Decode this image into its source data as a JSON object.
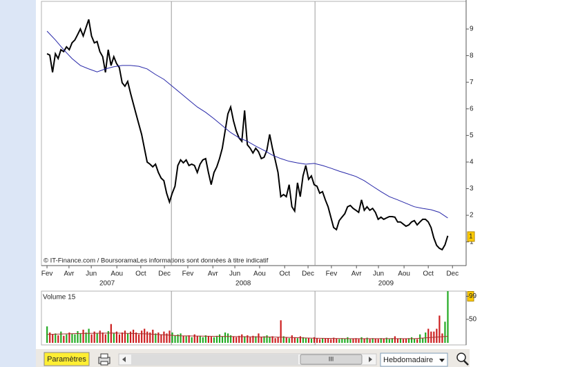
{
  "chart_data": [
    {
      "type": "line",
      "xlim": [
        -2,
        148
      ],
      "ylim": [
        0.11,
        10.09
      ],
      "yticks": [
        1,
        2,
        3,
        4,
        5,
        6,
        7,
        8,
        9
      ],
      "xticks": [
        {
          "value": 0,
          "label": "Fev"
        },
        {
          "value": 7.9,
          "label": "Avr"
        },
        {
          "value": 15.9,
          "label": "Jun"
        },
        {
          "value": 25.1,
          "label": "Aou"
        },
        {
          "value": 33.7,
          "label": "Oct"
        },
        {
          "value": 42.2,
          "label": "Dec"
        },
        {
          "value": 50.6,
          "label": "Fev"
        },
        {
          "value": 59.6,
          "label": "Avr"
        },
        {
          "value": 67.5,
          "label": "Jun"
        },
        {
          "value": 76.4,
          "label": "Aou"
        },
        {
          "value": 85.4,
          "label": "Oct"
        },
        {
          "value": 93.8,
          "label": "Dec"
        },
        {
          "value": 102.2,
          "label": "Fev"
        },
        {
          "value": 111.2,
          "label": "Avr"
        },
        {
          "value": 119.1,
          "label": "Jun"
        },
        {
          "value": 128.3,
          "label": "Aou"
        },
        {
          "value": 137,
          "label": "Oct"
        },
        {
          "value": 145.7,
          "label": "Dec"
        }
      ],
      "year_ticks": [
        {
          "value": 21.6,
          "label": "2007"
        },
        {
          "value": 70.5,
          "label": "2008"
        },
        {
          "value": 121.8,
          "label": "2009"
        }
      ],
      "year_lines": [
        44.7,
        96.3
      ],
      "current_marker": {
        "value": 1.2,
        "label": "1"
      },
      "highlight_color": "#ffcc00",
      "footnote": "© IT-Finance.com / BoursoramaLes informations sont données à titre indicatif",
      "series": [
        {
          "color": "#000000",
          "x": [
            0,
            1,
            2,
            3,
            4,
            5,
            6,
            7,
            8,
            9,
            10,
            11,
            12,
            13,
            14,
            15,
            16,
            17,
            18,
            19,
            20,
            21,
            22,
            23,
            24,
            25,
            26,
            27,
            28,
            29,
            30,
            31,
            32,
            33,
            34,
            35,
            36,
            37,
            38,
            39,
            40,
            41,
            42,
            43,
            44,
            45,
            46,
            47,
            48,
            49,
            50,
            51,
            52,
            53,
            54,
            55,
            56,
            57,
            58,
            59,
            60,
            61,
            62,
            63,
            64,
            65,
            66,
            67,
            68,
            69,
            70,
            71,
            72,
            73,
            74,
            75,
            76,
            77,
            78,
            79,
            80,
            81,
            82,
            83,
            84,
            85,
            86,
            87,
            88,
            89,
            90,
            91,
            92,
            93,
            94,
            95,
            96,
            97,
            98,
            99,
            100,
            101,
            102,
            103,
            104,
            105,
            106,
            107,
            108,
            109,
            110,
            111,
            112,
            113,
            114,
            115,
            116,
            117,
            118,
            119,
            120,
            121,
            122,
            123,
            124,
            125,
            126,
            127,
            128,
            129,
            130,
            131,
            132,
            133,
            134,
            135,
            136,
            137,
            138,
            139,
            140,
            141,
            142,
            143,
            144
          ],
          "values": [
            8.07,
            8.02,
            7.37,
            8.07,
            7.89,
            8.22,
            8.15,
            8.33,
            8.22,
            8.48,
            8.59,
            8.79,
            9.0,
            8.74,
            9.05,
            9.36,
            8.74,
            8.48,
            8.53,
            8.15,
            7.96,
            7.37,
            8.22,
            7.63,
            7.96,
            7.7,
            7.55,
            6.98,
            6.85,
            7.03,
            6.59,
            6.2,
            5.81,
            5.42,
            5.04,
            4.52,
            4.0,
            3.92,
            3.82,
            3.92,
            3.61,
            3.4,
            3.3,
            2.83,
            2.5,
            2.83,
            3.09,
            3.87,
            4.08,
            3.97,
            4.08,
            3.87,
            3.92,
            3.87,
            3.61,
            3.92,
            4.08,
            4.13,
            3.61,
            3.15,
            3.61,
            3.82,
            4.13,
            4.52,
            5.17,
            5.81,
            6.07,
            5.55,
            5.17,
            4.91,
            4.78,
            5.94,
            4.65,
            4.52,
            4.34,
            4.52,
            4.39,
            4.13,
            4.18,
            4.44,
            5.04,
            4.52,
            4.08,
            3.61,
            2.7,
            2.78,
            2.7,
            3.15,
            2.32,
            2.16,
            3.22,
            2.7,
            3.48,
            3.87,
            3.35,
            3.48,
            3.15,
            3.09,
            2.83,
            2.89,
            2.58,
            2.32,
            1.93,
            1.54,
            1.46,
            1.8,
            1.93,
            2.06,
            2.32,
            2.37,
            2.26,
            2.19,
            2.11,
            2.58,
            2.19,
            2.32,
            2.19,
            2.26,
            2.11,
            1.85,
            1.93,
            1.85,
            1.9,
            1.95,
            1.95,
            1.93,
            1.75,
            1.75,
            1.67,
            1.59,
            1.64,
            1.75,
            1.8,
            1.64,
            1.75,
            1.85,
            1.85,
            1.75,
            1.54,
            1.15,
            0.87,
            0.76,
            0.71,
            0.89,
            1.23
          ]
        },
        {
          "color": "#2626a8",
          "x": [
            0,
            3,
            6,
            9,
            12,
            15,
            18,
            21,
            24,
            27,
            30,
            33,
            36,
            39,
            42,
            45,
            48,
            51,
            54,
            57,
            60,
            63,
            66,
            69,
            72,
            75,
            78,
            81,
            84,
            87,
            90,
            93,
            96,
            99,
            102,
            105,
            108,
            111,
            114,
            117,
            120,
            123,
            126,
            129,
            132,
            135,
            138,
            141,
            144
          ],
          "values": [
            8.92,
            8.59,
            8.22,
            7.89,
            7.63,
            7.5,
            7.39,
            7.5,
            7.58,
            7.63,
            7.63,
            7.6,
            7.5,
            7.29,
            7.11,
            6.85,
            6.59,
            6.33,
            6.07,
            5.87,
            5.63,
            5.37,
            5.11,
            4.91,
            4.78,
            4.6,
            4.44,
            4.26,
            4.13,
            4.03,
            3.97,
            3.92,
            3.95,
            3.87,
            3.77,
            3.66,
            3.56,
            3.46,
            3.3,
            3.09,
            2.89,
            2.7,
            2.58,
            2.45,
            2.32,
            2.26,
            2.21,
            2.11,
            1.9
          ]
        }
      ]
    },
    {
      "type": "bar",
      "title": "Volume 15",
      "xlim": [
        -2,
        148
      ],
      "ylim": [
        0,
        110
      ],
      "yticks": [
        50,
        99
      ],
      "highlight_tick": 1,
      "highlight_color": "#ffcc00",
      "year_lines": [
        44.7,
        96.3
      ],
      "up_color": "#22aa22",
      "down_color": "#cc1f1f",
      "x": [
        0,
        1,
        2,
        3,
        4,
        5,
        6,
        7,
        8,
        9,
        10,
        11,
        12,
        13,
        14,
        15,
        16,
        17,
        18,
        19,
        20,
        21,
        22,
        23,
        24,
        25,
        26,
        27,
        28,
        29,
        30,
        31,
        32,
        33,
        34,
        35,
        36,
        37,
        38,
        39,
        40,
        41,
        42,
        43,
        44,
        45,
        46,
        47,
        48,
        49,
        50,
        51,
        52,
        53,
        54,
        55,
        56,
        57,
        58,
        59,
        60,
        61,
        62,
        63,
        64,
        65,
        66,
        67,
        68,
        69,
        70,
        71,
        72,
        73,
        74,
        75,
        76,
        77,
        78,
        79,
        80,
        81,
        82,
        83,
        84,
        85,
        86,
        87,
        88,
        89,
        90,
        91,
        92,
        93,
        94,
        95,
        96,
        97,
        98,
        99,
        100,
        101,
        102,
        103,
        104,
        105,
        106,
        107,
        108,
        109,
        110,
        111,
        112,
        113,
        114,
        115,
        116,
        117,
        118,
        119,
        120,
        121,
        122,
        123,
        124,
        125,
        126,
        127,
        128,
        129,
        130,
        131,
        132,
        133,
        134,
        135,
        136,
        137,
        138,
        139,
        140,
        141,
        142,
        143,
        144
      ],
      "values": [
        35,
        22,
        18,
        20,
        16,
        24,
        15,
        18,
        22,
        20,
        18,
        25,
        20,
        28,
        22,
        30,
        18,
        24,
        20,
        26,
        22,
        18,
        25,
        40,
        20,
        24,
        18,
        22,
        26,
        20,
        24,
        28,
        22,
        18,
        26,
        30,
        24,
        22,
        28,
        20,
        22,
        18,
        24,
        20,
        26,
        22,
        16,
        18,
        20,
        15,
        14,
        16,
        12,
        18,
        14,
        15,
        12,
        16,
        14,
        13,
        12,
        15,
        18,
        14,
        22,
        20,
        16,
        14,
        12,
        15,
        18,
        14,
        16,
        12,
        15,
        14,
        20,
        12,
        14,
        16,
        12,
        14,
        10,
        12,
        48,
        14,
        12,
        10,
        16,
        12,
        10,
        14,
        12,
        10,
        11,
        9,
        12,
        10,
        8,
        10,
        9,
        10,
        8,
        11,
        9,
        8,
        10,
        9,
        12,
        8,
        9,
        10,
        8,
        12,
        9,
        11,
        8,
        10,
        9,
        8,
        10,
        9,
        11,
        8,
        10,
        14,
        9,
        10,
        8,
        9,
        10,
        12,
        9,
        8,
        18,
        10,
        22,
        30,
        24,
        24,
        30,
        58,
        20,
        45,
        110
      ],
      "ma": {
        "color": "#a83030",
        "x": [
          0,
          12,
          24,
          36,
          48,
          60,
          72,
          84,
          96,
          108,
          120,
          132,
          144
        ],
        "values": [
          18,
          20,
          21,
          19,
          15,
          14,
          13,
          12,
          10,
          9,
          9,
          9,
          14
        ]
      }
    }
  ],
  "toolbar": {
    "button": "Paramètres",
    "scroll_thumb": "III",
    "period": "Hebdomadaire"
  }
}
